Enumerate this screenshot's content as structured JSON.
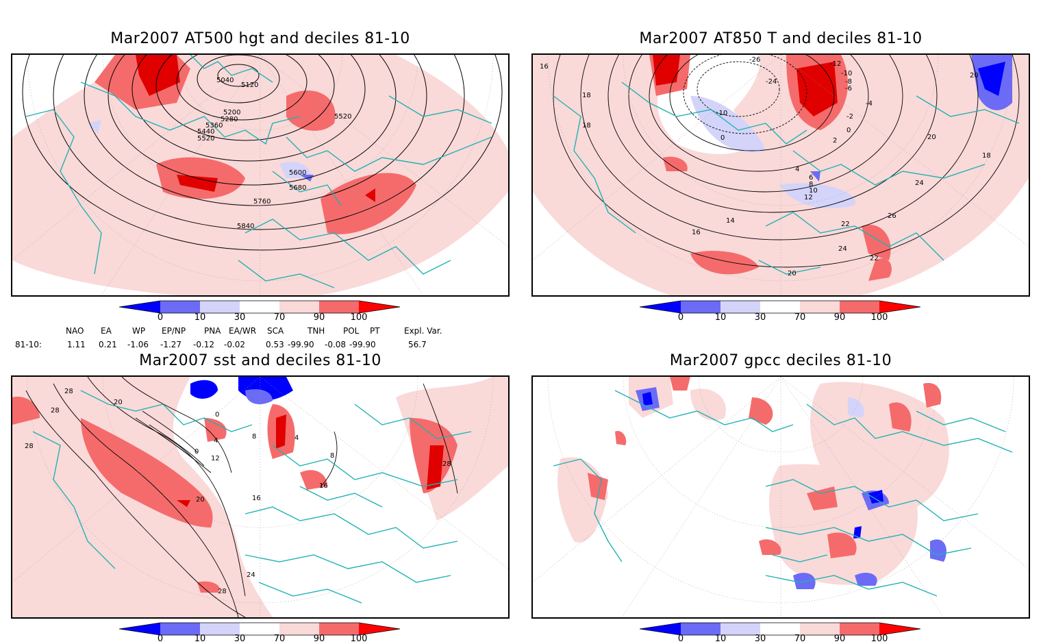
{
  "panels": [
    {
      "title": "Mar2007 AT500 hgt and deciles 81-10",
      "contour_labels": [
        "5040",
        "5120",
        "5200",
        "5280",
        "5360",
        "5440",
        "5520",
        "5520",
        "5600",
        "5680",
        "5760",
        "5840"
      ]
    },
    {
      "title": "Mar2007 AT850 T and deciles 81-10",
      "contour_labels": [
        "16",
        "18",
        "18",
        "-26",
        "-24",
        "-12",
        "-10",
        "-8",
        "-6",
        "-4",
        "-2",
        "0",
        "-10",
        "0",
        "2",
        "4",
        "6",
        "8",
        "10",
        "12",
        "14",
        "16",
        "18",
        "20",
        "20",
        "22",
        "22",
        "24",
        "24",
        "26",
        "20"
      ]
    },
    {
      "title": "Mar2007 sst and deciles 81-10",
      "contour_labels": [
        "28",
        "28",
        "28",
        "20",
        "12",
        "8",
        "4",
        "0",
        "0",
        "4",
        "16",
        "20",
        "24",
        "28",
        "16",
        "8",
        "28"
      ]
    },
    {
      "title": "Mar2007 gpcc deciles 81-10",
      "contour_labels": []
    }
  ],
  "colorbar": {
    "ticks": [
      "0",
      "10",
      "30",
      "70",
      "90",
      "100"
    ],
    "colors": [
      "#0000ff",
      "#6b6bf5",
      "#d4d4fa",
      "#ffffff",
      "#fad9d9",
      "#f56b6b",
      "#ff0000"
    ]
  },
  "indices": {
    "headers": [
      "NAO",
      "EA",
      "WP",
      "EP/NP",
      "PNA",
      "EA/WR",
      "SCA",
      "TNH",
      "POL",
      "PT",
      "Expl. Var."
    ],
    "row_label": "81-10:",
    "values": [
      "1.11",
      "0.21",
      "-1.06",
      "-1.27",
      "-0.12",
      "-0.02",
      "0.53",
      "-99.90",
      "-0.08",
      "-99.90",
      "56.7"
    ]
  }
}
